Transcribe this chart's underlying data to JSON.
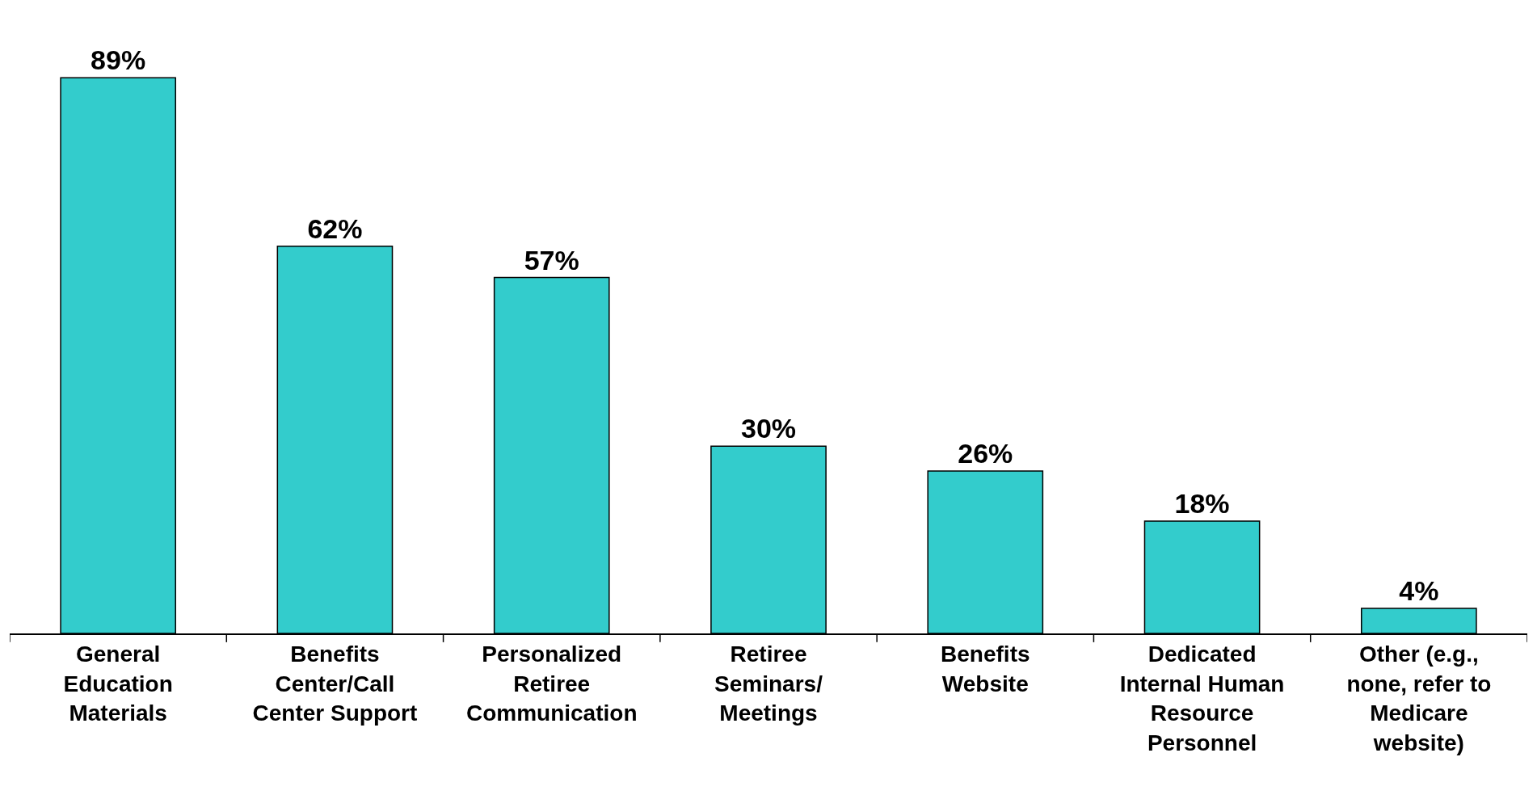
{
  "chart_data": {
    "type": "bar",
    "categories": [
      "General Education Materials",
      "Benefits Center/Call Center Support",
      "Personalized Retiree Communication",
      "Retiree Seminars/ Meetings",
      "Benefits Website",
      "Dedicated Internal Human Resource Personnel",
      "Other (e.g., none, refer to Medicare website)"
    ],
    "values": [
      89,
      62,
      57,
      30,
      26,
      18,
      4
    ],
    "value_labels": [
      "89%",
      "62%",
      "57%",
      "30%",
      "26%",
      "18%",
      "4%"
    ],
    "color": "#33cccc"
  }
}
